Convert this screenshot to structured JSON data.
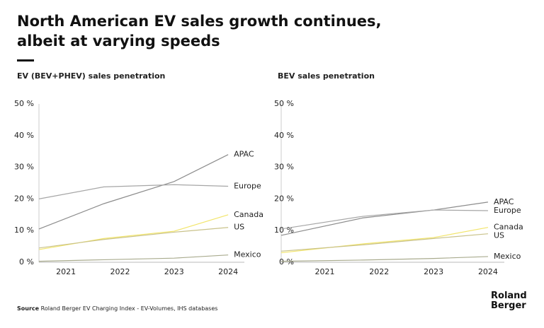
{
  "header": {
    "title_lines": [
      "North American EV sales growth continues,",
      "albeit at varying speeds"
    ]
  },
  "chart_data": [
    {
      "type": "line",
      "title": "EV (BEV+PHEV) sales penetration",
      "x": [
        2020.5,
        2021.7,
        2023,
        2024
      ],
      "series": [
        {
          "name": "APAC",
          "color": "#8c8c8c",
          "values": [
            10.5,
            18.5,
            25.5,
            34
          ]
        },
        {
          "name": "Europe",
          "color": "#a6a6a6",
          "values": [
            20,
            23.8,
            24.5,
            24
          ]
        },
        {
          "name": "Canada",
          "color": "#f2e56b",
          "values": [
            4,
            7.5,
            9.8,
            15
          ]
        },
        {
          "name": "US",
          "color": "#c9c28a",
          "values": [
            4.5,
            7.2,
            9.5,
            11
          ]
        },
        {
          "name": "Mexico",
          "color": "#a9ab8e",
          "values": [
            0.3,
            0.8,
            1.3,
            2.3
          ]
        }
      ],
      "xlim": [
        2020.5,
        2024.3
      ],
      "xticks": [
        2021,
        2022,
        2023,
        2024
      ],
      "ylim": [
        0,
        50
      ],
      "yticks": [
        {
          "value": 0,
          "label": "0 %"
        },
        {
          "value": 10,
          "label": "10 %"
        },
        {
          "value": 20,
          "label": "20 %"
        },
        {
          "value": 30,
          "label": "30 %"
        },
        {
          "value": 40,
          "label": "40 %"
        },
        {
          "value": 50,
          "label": "50 %"
        }
      ]
    },
    {
      "type": "line",
      "title": "BEV sales penetration",
      "x": [
        2020.2,
        2021.7,
        2023,
        2024
      ],
      "series": [
        {
          "name": "APAC",
          "color": "#8c8c8c",
          "values": [
            8.5,
            14,
            16.5,
            19
          ]
        },
        {
          "name": "Europe",
          "color": "#a6a6a6",
          "values": [
            10.5,
            14.5,
            16.5,
            16.3
          ]
        },
        {
          "name": "Canada",
          "color": "#f2e56b",
          "values": [
            3,
            5.8,
            7.8,
            11
          ]
        },
        {
          "name": "US",
          "color": "#c9c28a",
          "values": [
            3.5,
            5.5,
            7.5,
            9
          ]
        },
        {
          "name": "Mexico",
          "color": "#a9ab8e",
          "values": [
            0.3,
            0.7,
            1.2,
            1.8
          ]
        }
      ],
      "xlim": [
        2020.2,
        2024.3
      ],
      "xticks": [
        2021,
        2022,
        2023,
        2024
      ],
      "ylim": [
        0,
        50
      ],
      "yticks": [
        {
          "value": 0,
          "label": "0 %"
        },
        {
          "value": 10,
          "label": "10 %"
        },
        {
          "value": 20,
          "label": "20 %"
        },
        {
          "value": 30,
          "label": "30 %"
        },
        {
          "value": 40,
          "label": "40 %"
        },
        {
          "value": 50,
          "label": "50 %"
        }
      ]
    }
  ],
  "footer": {
    "source_label": "Source",
    "source_text": "Roland Berger EV Charging Index - EV-Volumes, IHS databases"
  },
  "logo": {
    "lines": [
      "Roland",
      "Berger"
    ]
  }
}
